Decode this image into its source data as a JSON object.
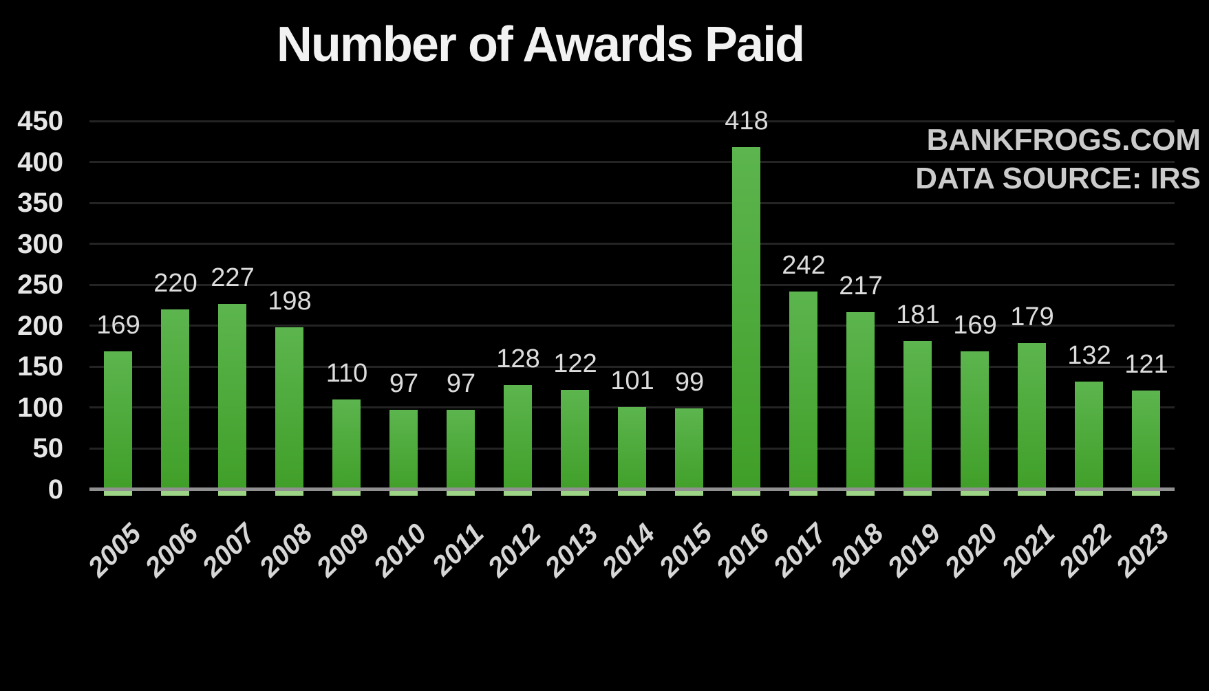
{
  "title": "Number of Awards Paid",
  "watermark": {
    "line1": "BANKFROGS.COM",
    "line2": "DATA SOURCE: IRS"
  },
  "chart_data": {
    "type": "bar",
    "title": "Number of Awards Paid",
    "categories": [
      "2005",
      "2006",
      "2007",
      "2008",
      "2009",
      "2010",
      "2011",
      "2012",
      "2013",
      "2014",
      "2015",
      "2016",
      "2017",
      "2018",
      "2019",
      "2020",
      "2021",
      "2022",
      "2023"
    ],
    "values": [
      169,
      220,
      227,
      198,
      110,
      97,
      97,
      128,
      122,
      101,
      99,
      418,
      242,
      217,
      181,
      169,
      179,
      132,
      121
    ],
    "xlabel": "",
    "ylabel": "",
    "ylim": [
      0,
      450
    ],
    "yticks": [
      0,
      50,
      100,
      150,
      200,
      250,
      300,
      350,
      400,
      450
    ],
    "grid": true,
    "legend_position": "none",
    "data_labels_shown": true,
    "x_labels_rotation_deg": 45,
    "annotations": [
      "BANKFROGS.COM",
      "DATA SOURCE: IRS"
    ],
    "colors": {
      "background": "#000000",
      "bar_gradient_top": "#5cb54e",
      "bar_gradient_bottom": "#3f9e27",
      "bar_base_highlight": "#9cd384",
      "gridline": "#242424",
      "axis_line": "#909090",
      "title_text": "#f2f2f2",
      "tick_text": "#e6e6e6",
      "value_label_text": "#dcdcdc",
      "year_label_text": "#d6d6d6",
      "watermark_text": "#cbcbcb"
    }
  }
}
